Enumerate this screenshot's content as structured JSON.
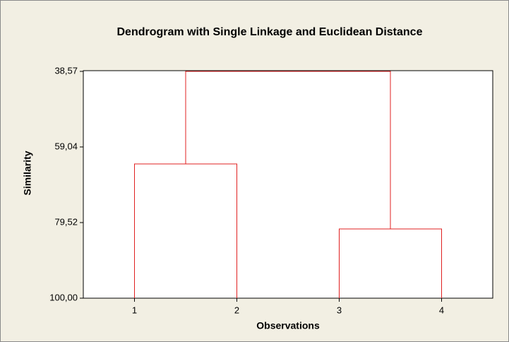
{
  "chart_data": {
    "type": "dendrogram",
    "title": "Dendrogram with Single Linkage and Euclidean Distance",
    "xlabel": "Observations",
    "ylabel": "Similarity",
    "categories": [
      "1",
      "2",
      "3",
      "4"
    ],
    "merges": [
      {
        "left": 0,
        "right": 1,
        "value": 63.64
      },
      {
        "left": 2,
        "right": 3,
        "value": 81.25
      },
      {
        "left": 4,
        "right": 5,
        "value": 38.57
      }
    ],
    "color": "#e02020",
    "ylim": [
      100,
      38.57
    ],
    "yticks": [
      {
        "value": 38.57,
        "label": "38,57"
      },
      {
        "value": 59.04,
        "label": "59,04"
      },
      {
        "value": 79.52,
        "label": "79,52"
      },
      {
        "value": 100,
        "label": "100,00"
      }
    ],
    "grid": false
  }
}
